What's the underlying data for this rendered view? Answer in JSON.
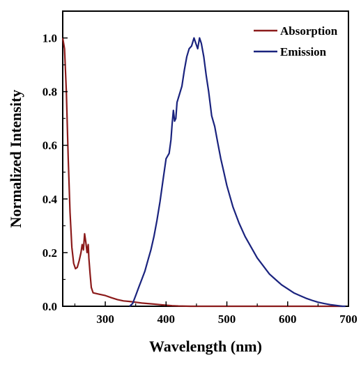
{
  "chart_data": {
    "type": "line",
    "title": "",
    "xlabel": "Wavelength (nm)",
    "ylabel": "Normalized Intensity",
    "xlim": [
      230,
      700
    ],
    "ylim": [
      0,
      1.1
    ],
    "xticks": [
      300,
      400,
      500,
      600,
      700
    ],
    "yticks": [
      0.0,
      0.2,
      0.4,
      0.6,
      0.8,
      1.0
    ],
    "xtick_labels": [
      "300",
      "400",
      "500",
      "600",
      "700"
    ],
    "ytick_labels": [
      "0.0",
      "0.2",
      "0.4",
      "0.6",
      "0.8",
      "1.0"
    ],
    "grid": false,
    "legend_position": "top-right",
    "series": [
      {
        "name": "Absorption",
        "color": "#8b1a1a",
        "points": [
          [
            230,
            1.0
          ],
          [
            233,
            0.96
          ],
          [
            236,
            0.8
          ],
          [
            239,
            0.55
          ],
          [
            242,
            0.35
          ],
          [
            245,
            0.22
          ],
          [
            248,
            0.16
          ],
          [
            251,
            0.14
          ],
          [
            254,
            0.145
          ],
          [
            257,
            0.17
          ],
          [
            260,
            0.2
          ],
          [
            262,
            0.23
          ],
          [
            264,
            0.21
          ],
          [
            266,
            0.27
          ],
          [
            268,
            0.24
          ],
          [
            270,
            0.2
          ],
          [
            272,
            0.23
          ],
          [
            273,
            0.18
          ],
          [
            275,
            0.12
          ],
          [
            277,
            0.07
          ],
          [
            280,
            0.05
          ],
          [
            290,
            0.045
          ],
          [
            300,
            0.04
          ],
          [
            310,
            0.032
          ],
          [
            320,
            0.025
          ],
          [
            330,
            0.02
          ],
          [
            340,
            0.018
          ],
          [
            350,
            0.015
          ],
          [
            360,
            0.012
          ],
          [
            370,
            0.01
          ],
          [
            380,
            0.008
          ],
          [
            390,
            0.006
          ],
          [
            400,
            0.004
          ],
          [
            410,
            0.002
          ],
          [
            420,
            0.001
          ],
          [
            440,
            0.0
          ],
          [
            500,
            0.0
          ],
          [
            600,
            0.0
          ],
          [
            690,
            0.0
          ]
        ]
      },
      {
        "name": "Emission",
        "color": "#1a237e",
        "points": [
          [
            340,
            0.0
          ],
          [
            345,
            0.01
          ],
          [
            350,
            0.04
          ],
          [
            355,
            0.07
          ],
          [
            360,
            0.1
          ],
          [
            365,
            0.13
          ],
          [
            370,
            0.17
          ],
          [
            375,
            0.21
          ],
          [
            380,
            0.26
          ],
          [
            385,
            0.32
          ],
          [
            390,
            0.39
          ],
          [
            395,
            0.47
          ],
          [
            400,
            0.55
          ],
          [
            405,
            0.57
          ],
          [
            408,
            0.62
          ],
          [
            410,
            0.68
          ],
          [
            412,
            0.73
          ],
          [
            414,
            0.69
          ],
          [
            416,
            0.7
          ],
          [
            418,
            0.76
          ],
          [
            422,
            0.79
          ],
          [
            426,
            0.82
          ],
          [
            430,
            0.88
          ],
          [
            434,
            0.93
          ],
          [
            438,
            0.96
          ],
          [
            442,
            0.97
          ],
          [
            446,
            1.0
          ],
          [
            449,
            0.98
          ],
          [
            452,
            0.96
          ],
          [
            455,
            1.0
          ],
          [
            458,
            0.98
          ],
          [
            462,
            0.93
          ],
          [
            466,
            0.86
          ],
          [
            470,
            0.8
          ],
          [
            475,
            0.71
          ],
          [
            480,
            0.67
          ],
          [
            485,
            0.61
          ],
          [
            490,
            0.55
          ],
          [
            495,
            0.5
          ],
          [
            500,
            0.45
          ],
          [
            510,
            0.37
          ],
          [
            520,
            0.31
          ],
          [
            530,
            0.26
          ],
          [
            540,
            0.22
          ],
          [
            550,
            0.18
          ],
          [
            560,
            0.15
          ],
          [
            570,
            0.12
          ],
          [
            580,
            0.1
          ],
          [
            590,
            0.08
          ],
          [
            600,
            0.065
          ],
          [
            610,
            0.05
          ],
          [
            620,
            0.04
          ],
          [
            630,
            0.03
          ],
          [
            640,
            0.022
          ],
          [
            650,
            0.015
          ],
          [
            660,
            0.01
          ],
          [
            670,
            0.006
          ],
          [
            680,
            0.003
          ],
          [
            690,
            0.0
          ],
          [
            695,
            0.0
          ]
        ]
      }
    ]
  }
}
